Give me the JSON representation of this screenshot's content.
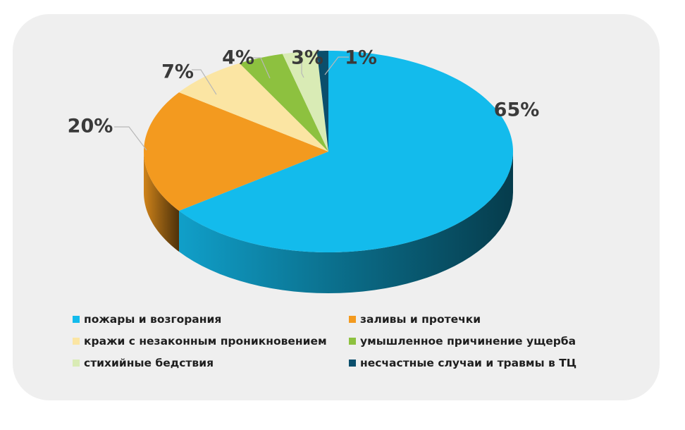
{
  "chart_data": {
    "type": "pie",
    "variant": "3d",
    "title": "",
    "start_angle_deg": 0,
    "direction": "clockwise",
    "legend_position": "bottom",
    "slices": [
      {
        "label": "пожары и возгорания",
        "value": 65,
        "value_label": "65%",
        "color": "#13bbec"
      },
      {
        "label": "заливы и протечки",
        "value": 20,
        "value_label": "20%",
        "color": "#f39a1f"
      },
      {
        "label": "кражи с незаконным проникновением",
        "value": 7,
        "value_label": "7%",
        "color": "#fbe5a3"
      },
      {
        "label": "умышленное причинение ущерба",
        "value": 4,
        "value_label": "4%",
        "color": "#8dc13f"
      },
      {
        "label": "стихийные бедствия",
        "value": 3,
        "value_label": "3%",
        "color": "#d9ebb5"
      },
      {
        "label": "несчастные случаи и травмы в ТЦ",
        "value": 1,
        "value_label": "1%",
        "color": "#0b4f6c"
      }
    ]
  },
  "colors": {
    "card_background": "#efefef",
    "label_text": "#3a3a3a",
    "legend_text": "#1f1f1f",
    "leader_line": "#b8b8b8"
  }
}
